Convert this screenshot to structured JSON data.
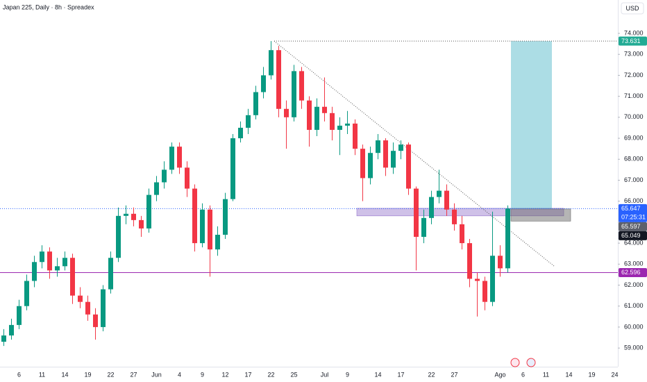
{
  "chart_data": {
    "type": "candlestick",
    "title": "Japan 225, Daily · 8h · Spreadex",
    "currency": "USD",
    "categories": [
      null,
      null,
      "6",
      null,
      null,
      "11",
      null,
      null,
      "14",
      null,
      null,
      "19",
      null,
      null,
      "22",
      null,
      null,
      "27",
      null,
      null,
      "Jun",
      null,
      null,
      "4",
      null,
      null,
      "9",
      null,
      null,
      "12",
      null,
      null,
      "17",
      null,
      null,
      "22",
      null,
      null,
      "25",
      null,
      null,
      null,
      "Jul",
      null,
      null,
      "9",
      null,
      null,
      null,
      "14",
      null,
      null,
      "17",
      null,
      null,
      null,
      "22",
      null,
      null,
      "27",
      null,
      null,
      null,
      null,
      null,
      "Ago",
      null,
      null,
      "6",
      null,
      null,
      "11",
      null,
      null,
      "14",
      null,
      null,
      "19",
      null,
      null,
      "24"
    ],
    "open": [
      59.3,
      59.6,
      60.1,
      61.0,
      62.2,
      63.1,
      63.6,
      62.7,
      62.9,
      63.3,
      61.5,
      61.2,
      60.6,
      60.0,
      61.8,
      63.3,
      65.3,
      65.4,
      65.1,
      64.7,
      66.3,
      66.9,
      67.5,
      68.6,
      67.6,
      66.6,
      64.0,
      65.6,
      63.7,
      64.4,
      66.1,
      69.0,
      69.5,
      70.1,
      71.2,
      72.0,
      73.2,
      70.4,
      70.0,
      72.2,
      70.8,
      69.4,
      70.5,
      70.2,
      69.4,
      69.6,
      69.7,
      68.5,
      67.1,
      68.3,
      68.9,
      67.6,
      68.4,
      68.7,
      66.6,
      64.3,
      65.2,
      66.2,
      66.5,
      65.6,
      64.9,
      64.0,
      62.3,
      62.2,
      61.2,
      63.4,
      62.8,
      null,
      null,
      null,
      null,
      null,
      null,
      null,
      null,
      null,
      null,
      null,
      null,
      null,
      null
    ],
    "high": [
      59.9,
      60.4,
      61.3,
      62.5,
      63.4,
      63.9,
      63.8,
      63.3,
      63.6,
      63.5,
      61.9,
      61.5,
      60.9,
      62.0,
      63.6,
      65.7,
      65.8,
      65.7,
      65.3,
      66.6,
      67.2,
      67.9,
      68.8,
      68.8,
      67.9,
      66.8,
      65.9,
      65.8,
      64.8,
      66.4,
      69.2,
      69.8,
      70.4,
      71.5,
      72.4,
      73.631,
      73.4,
      70.8,
      72.5,
      72.4,
      71.0,
      70.9,
      71.9,
      70.5,
      70.0,
      70.3,
      69.9,
      68.7,
      68.6,
      69.2,
      69.0,
      68.8,
      68.9,
      68.8,
      66.7,
      65.6,
      66.5,
      67.5,
      66.8,
      65.9,
      65.3,
      64.2,
      62.6,
      62.4,
      65.5,
      63.9,
      65.8,
      null,
      null,
      null,
      null,
      null,
      null,
      null,
      null,
      null,
      null,
      null,
      null,
      null,
      null
    ],
    "low": [
      59.1,
      59.4,
      59.9,
      60.8,
      61.9,
      62.8,
      62.3,
      62.4,
      62.7,
      61.1,
      60.9,
      60.3,
      59.4,
      59.8,
      61.6,
      63.1,
      64.9,
      64.8,
      64.3,
      64.5,
      66.0,
      66.6,
      67.3,
      67.3,
      66.2,
      63.6,
      63.8,
      62.4,
      63.4,
      64.2,
      66.0,
      68.8,
      69.2,
      69.9,
      70.9,
      71.8,
      70.0,
      68.5,
      69.8,
      70.4,
      68.6,
      69.1,
      69.8,
      68.9,
      68.2,
      69.2,
      68.2,
      66.0,
      66.8,
      68.0,
      67.2,
      67.3,
      68.0,
      66.3,
      62.7,
      64.0,
      64.9,
      65.9,
      65.3,
      64.6,
      63.7,
      61.9,
      60.5,
      60.8,
      61.0,
      62.4,
      62.6,
      null,
      null,
      null,
      null,
      null,
      null,
      null,
      null,
      null,
      null,
      null,
      null,
      null,
      null
    ],
    "close": [
      59.6,
      60.1,
      61.0,
      62.2,
      63.1,
      63.6,
      62.7,
      62.9,
      63.3,
      61.5,
      61.2,
      60.6,
      60.0,
      61.8,
      63.3,
      65.3,
      65.4,
      65.1,
      64.7,
      66.3,
      66.9,
      67.5,
      68.6,
      67.6,
      66.6,
      64.0,
      65.6,
      63.7,
      64.4,
      66.1,
      69.0,
      69.5,
      70.1,
      71.2,
      72.0,
      73.2,
      70.4,
      70.0,
      72.2,
      70.8,
      69.4,
      70.5,
      70.2,
      69.4,
      69.6,
      69.7,
      68.5,
      67.1,
      68.3,
      68.9,
      67.6,
      68.4,
      68.7,
      66.6,
      64.3,
      65.2,
      66.2,
      66.5,
      65.6,
      64.9,
      64.0,
      62.3,
      62.2,
      61.2,
      63.4,
      62.8,
      65.647,
      null,
      null,
      null,
      null,
      null,
      null,
      null,
      null,
      null,
      null,
      null,
      null,
      null,
      null
    ],
    "up_color": "#089981",
    "down_color": "#f23645",
    "ylim": [
      58.11,
      75.59
    ],
    "yticks": [
      {
        "value": 59,
        "label": "59.000"
      },
      {
        "value": 60,
        "label": "60.000"
      },
      {
        "value": 61,
        "label": "61.000"
      },
      {
        "value": 62,
        "label": "62.000"
      },
      {
        "value": 63,
        "label": "63.000"
      },
      {
        "value": 64,
        "label": "64.000"
      },
      {
        "value": 65,
        "label": "65.000"
      },
      {
        "value": 66,
        "label": "66.000"
      },
      {
        "value": 67,
        "label": "67.000"
      },
      {
        "value": 68,
        "label": "68.000"
      },
      {
        "value": 69,
        "label": "69.000"
      },
      {
        "value": 70,
        "label": "70.000"
      },
      {
        "value": 71,
        "label": "71.000"
      },
      {
        "value": 72,
        "label": "72.000"
      },
      {
        "value": 73,
        "label": "73.000"
      },
      {
        "value": 74,
        "label": "74.000"
      }
    ],
    "grid": false,
    "drawings": {
      "support_level": 62.596,
      "trendline": [
        73.631,
        62.91
      ],
      "top_level": 73.631,
      "zone": [
        65.3,
        65.66
      ],
      "position": {
        "target": 73.631,
        "entry": 65.63,
        "stop": 65.05
      }
    },
    "last_price": 65.647,
    "countdown": "07:25:31",
    "price_tags": [
      {
        "value": 73.631,
        "color": "#22ab94"
      },
      {
        "value": 65.647,
        "color": "#2962ff"
      },
      {
        "value": 65.597,
        "color": "#5d606b"
      },
      {
        "value": 65.049,
        "color": "#131722"
      },
      {
        "value": 62.596,
        "color": "#9c27b0"
      }
    ]
  }
}
